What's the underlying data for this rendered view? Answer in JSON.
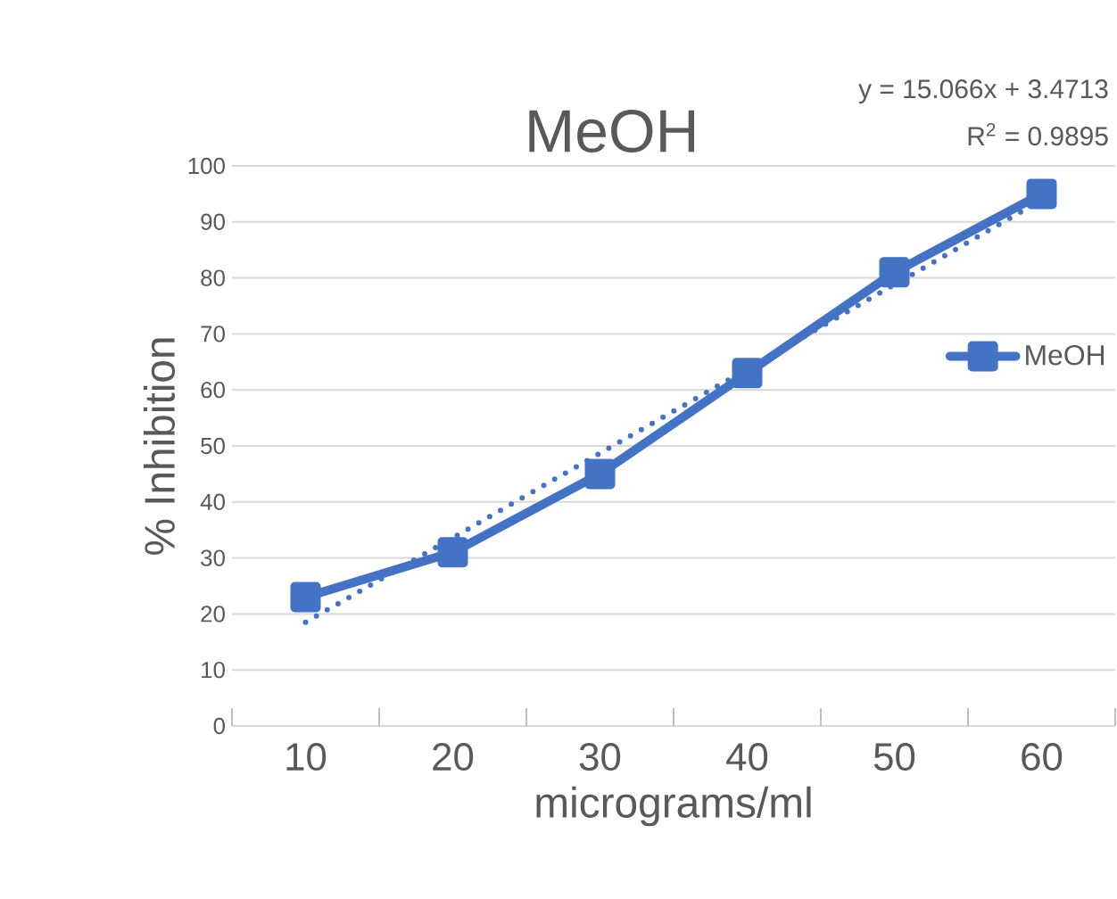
{
  "chart_data": {
    "type": "line",
    "title": "MeOH",
    "xlabel": "micrograms/ml",
    "ylabel": "% Inhibition",
    "categories": [
      "10",
      "20",
      "30",
      "40",
      "50",
      "60"
    ],
    "series": [
      {
        "name": "MeOH",
        "color": "#4472c4",
        "values": [
          23,
          31,
          45,
          63,
          81,
          95
        ],
        "marker": "square",
        "line_style": "solid"
      },
      {
        "type": "line",
        "color": "#4472c4",
        "values": [
          18.5,
          33.6,
          48.7,
          63.7,
          78.8,
          93.9
        ],
        "marker": "none",
        "line_style": "dotted"
      }
    ],
    "ylim": [
      0,
      100
    ],
    "yticks": [
      0,
      10,
      20,
      30,
      40,
      50,
      60,
      70,
      80,
      90,
      100
    ],
    "grid": "y",
    "legend": "right",
    "annotations": [
      "y = 15.066x + 3.4713",
      "R$^{2}$ = 0.9895"
    ]
  }
}
